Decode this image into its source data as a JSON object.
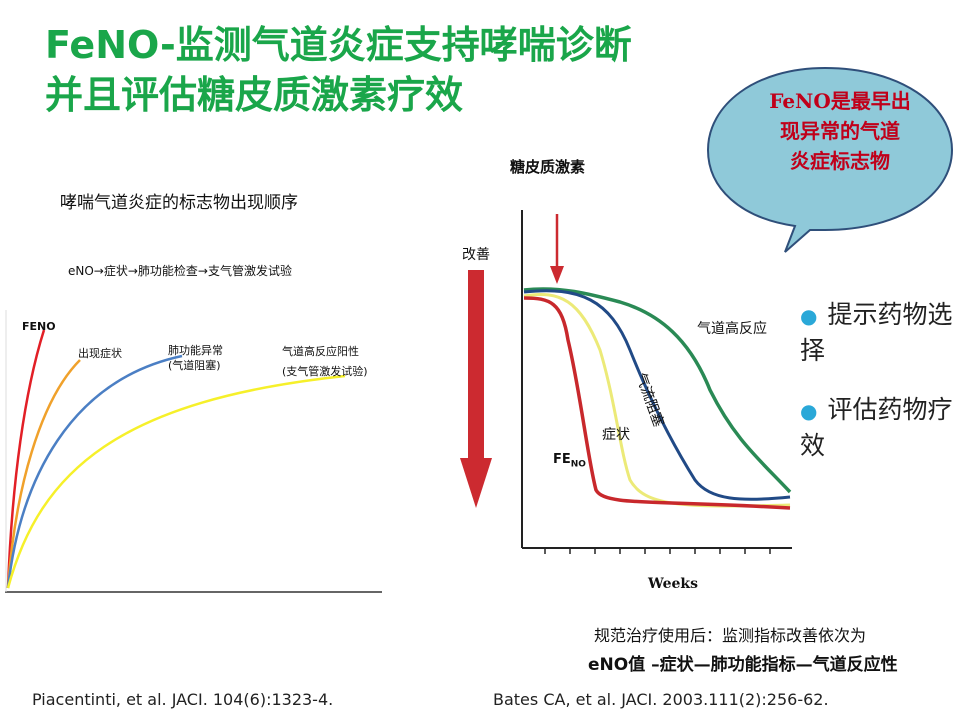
{
  "title": {
    "line1": "FeNO-监测气道炎症支持哮喘诊断",
    "line2": "并且评估糖皮质激素疗效"
  },
  "callout": {
    "line1": "FeNO是最早出",
    "line2": "现异常的气道",
    "line3": "炎症标志物"
  },
  "left_chart": {
    "heading": "哮喘气道炎症的标志物出现顺序",
    "sequence": "eNO→症状→肺功能检查→支气管激发试验",
    "labels": {
      "feno": "FENO",
      "symptom": "出现症状",
      "lung_line1": "肺功能异常",
      "lung_line2": "(气道阻塞)",
      "hyper_line1": "气道高反应阳性",
      "hyper_line2": "(支气管激发试验)"
    },
    "colors": {
      "feno": "#e21f26",
      "symptom": "#f0a12b",
      "lung": "#4b7fc4",
      "hyper": "#f6f02a"
    }
  },
  "right_chart": {
    "heading": "糖皮质激素",
    "improve_label": "改善",
    "xlabel": "Weeks",
    "labels": {
      "hyper": "气道高反应",
      "airflow": "气流阻塞",
      "symptom": "症状",
      "feno": "FE",
      "feno_sub": "NO"
    },
    "colors": {
      "arrow": "#cc2a30",
      "feno": "#c8282c",
      "symptom": "#ecea78",
      "airflow": "#214a86",
      "hyper": "#2a8a55"
    },
    "note_line1": "规范治疗使用后：监测指标改善依次为",
    "note_line2": "eNO值 –症状—肺功能指标—气道反应性"
  },
  "bullets": [
    "提示药物选择",
    "评估药物疗效"
  ],
  "citations": {
    "left": "Piacentinti, et al. JACI. 104(6):1323-4.",
    "right": "Bates CA, et al. JACI. 2003.111(2):256-62."
  }
}
